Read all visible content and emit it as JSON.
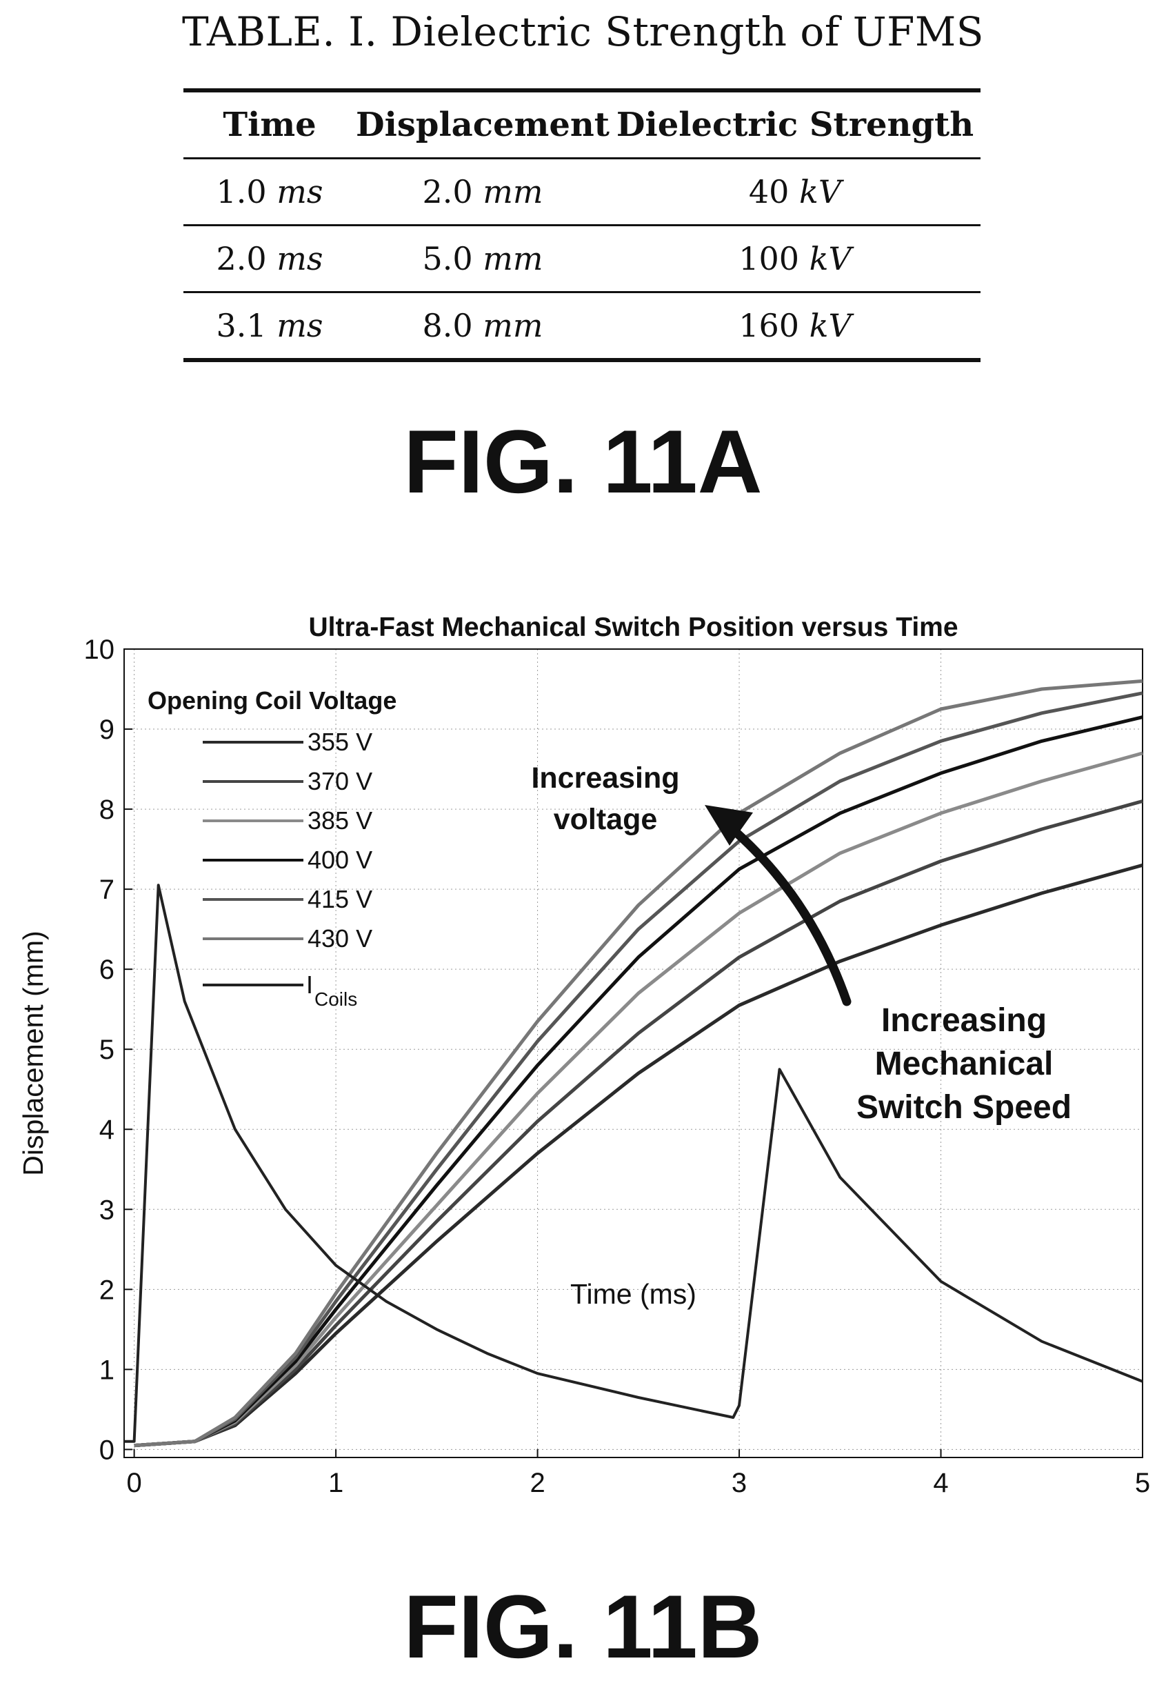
{
  "table": {
    "title": "TABLE. I. Dielectric Strength of UFMS",
    "headers": [
      "Time",
      "Displacement",
      "Dielectric Strength"
    ],
    "rows": [
      [
        {
          "num": "1.0",
          "unit": "ms"
        },
        {
          "num": "2.0",
          "unit": "mm"
        },
        {
          "num": "40",
          "unit": "kV"
        }
      ],
      [
        {
          "num": "2.0",
          "unit": "ms"
        },
        {
          "num": "5.0",
          "unit": "mm"
        },
        {
          "num": "100",
          "unit": "kV"
        }
      ],
      [
        {
          "num": "3.1",
          "unit": "ms"
        },
        {
          "num": "8.0",
          "unit": "mm"
        },
        {
          "num": "160",
          "unit": "kV"
        }
      ]
    ]
  },
  "fig_a_label": "FIG. 11A",
  "fig_b_label": "FIG. 11B",
  "chart_data": {
    "type": "line",
    "title": "Ultra-Fast Mechanical Switch Position versus Time",
    "xlabel": "Time (ms)",
    "ylabel": "Displacement (mm)",
    "xlim": [
      -0.05,
      5
    ],
    "ylim": [
      -0.1,
      10
    ],
    "xticks": [
      0,
      1,
      2,
      3,
      4,
      5
    ],
    "yticks": [
      0,
      1,
      2,
      3,
      4,
      5,
      6,
      7,
      8,
      9,
      10
    ],
    "grid": true,
    "legend": {
      "title": "Opening Coil Voltage",
      "placement": "top-left",
      "entries": [
        "355 V",
        "370 V",
        "385 V",
        "400 V",
        "415 V",
        "430 V"
      ],
      "coil_entry": {
        "main": "I",
        "sub": "Coils"
      }
    },
    "colors": {
      "355 V": "#2a2a2a",
      "370 V": "#444444",
      "385 V": "#8a8a8a",
      "400 V": "#111111",
      "415 V": "#555555",
      "430 V": "#777777",
      "I_Coils": "#222222"
    },
    "series": [
      {
        "name": "355 V",
        "x": [
          0,
          0.3,
          0.5,
          0.8,
          1.0,
          1.5,
          2.0,
          2.5,
          3.0,
          3.5,
          4.0,
          4.5,
          5.0
        ],
        "y": [
          0.05,
          0.1,
          0.3,
          0.95,
          1.45,
          2.6,
          3.7,
          4.7,
          5.55,
          6.1,
          6.55,
          6.95,
          7.3
        ]
      },
      {
        "name": "370 V",
        "x": [
          0,
          0.3,
          0.5,
          0.8,
          1.0,
          1.5,
          2.0,
          2.5,
          3.0,
          3.5,
          4.0,
          4.5,
          5.0
        ],
        "y": [
          0.05,
          0.1,
          0.32,
          1.0,
          1.55,
          2.85,
          4.1,
          5.2,
          6.15,
          6.85,
          7.35,
          7.75,
          8.1
        ]
      },
      {
        "name": "385 V",
        "x": [
          0,
          0.3,
          0.5,
          0.8,
          1.0,
          1.5,
          2.0,
          2.5,
          3.0,
          3.5,
          4.0,
          4.5,
          5.0
        ],
        "y": [
          0.05,
          0.1,
          0.34,
          1.05,
          1.65,
          3.05,
          4.45,
          5.7,
          6.7,
          7.45,
          7.95,
          8.35,
          8.7
        ]
      },
      {
        "name": "400 V",
        "x": [
          0,
          0.3,
          0.5,
          0.8,
          1.0,
          1.5,
          2.0,
          2.5,
          3.0,
          3.5,
          4.0,
          4.5,
          5.0
        ],
        "y": [
          0.05,
          0.1,
          0.36,
          1.1,
          1.75,
          3.3,
          4.8,
          6.15,
          7.25,
          7.95,
          8.45,
          8.85,
          9.15
        ]
      },
      {
        "name": "415 V",
        "x": [
          0,
          0.3,
          0.5,
          0.8,
          1.0,
          1.5,
          2.0,
          2.5,
          3.0,
          3.5,
          4.0,
          4.5,
          5.0
        ],
        "y": [
          0.05,
          0.1,
          0.38,
          1.15,
          1.85,
          3.5,
          5.1,
          6.5,
          7.6,
          8.35,
          8.85,
          9.2,
          9.45
        ]
      },
      {
        "name": "430 V",
        "x": [
          0,
          0.3,
          0.5,
          0.8,
          1.0,
          1.5,
          2.0,
          2.5,
          3.0,
          3.5,
          4.0,
          4.5,
          5.0
        ],
        "y": [
          0.05,
          0.1,
          0.4,
          1.2,
          1.95,
          3.7,
          5.35,
          6.8,
          7.95,
          8.7,
          9.25,
          9.5,
          9.6
        ]
      },
      {
        "name": "I_Coils",
        "x": [
          -0.05,
          0.0,
          0.12,
          0.25,
          0.5,
          0.75,
          1.0,
          1.25,
          1.5,
          1.75,
          2.0,
          2.5,
          2.97,
          3.0,
          3.2,
          3.5,
          4.0,
          4.5,
          5.0
        ],
        "y": [
          0.1,
          0.1,
          7.05,
          5.6,
          4.0,
          3.0,
          2.3,
          1.85,
          1.5,
          1.2,
          0.95,
          0.65,
          0.4,
          0.55,
          4.75,
          3.4,
          2.1,
          1.35,
          0.85
        ]
      }
    ],
    "annotations": [
      {
        "text": [
          "Increasing",
          "voltage"
        ]
      },
      {
        "text": [
          "Increasing",
          "Mechanical",
          "Switch Speed"
        ]
      }
    ]
  }
}
